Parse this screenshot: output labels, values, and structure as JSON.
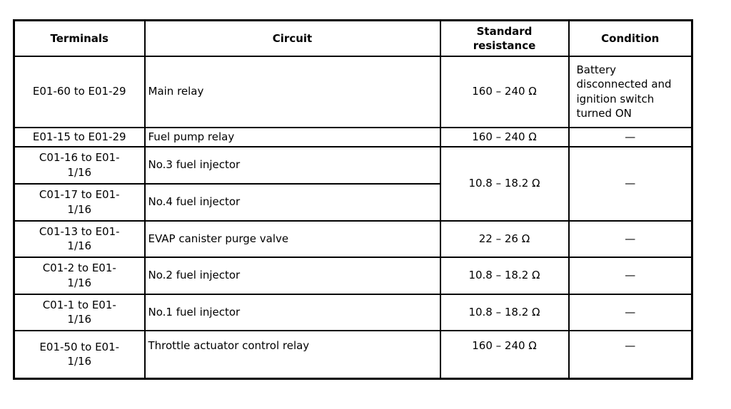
{
  "table": {
    "headers": [
      "Terminals",
      "Circuit",
      "Standard resistance",
      "Condition"
    ],
    "column_keys": [
      "terminals",
      "circuit",
      "resistance",
      "condition"
    ],
    "rows": [
      {
        "cells": [
          {
            "column": "terminals",
            "text": "E01-60 to E01-29"
          },
          {
            "column": "circuit",
            "text": "Main relay"
          },
          {
            "column": "resistance",
            "text": "160 – 240 Ω"
          },
          {
            "column": "condition",
            "text": "Battery disconnected and ignition switch turned ON",
            "align": "left"
          }
        ]
      },
      {
        "cells": [
          {
            "column": "terminals",
            "text": "E01-15 to E01-29"
          },
          {
            "column": "circuit",
            "text": "Fuel pump relay"
          },
          {
            "column": "resistance",
            "text": "160 – 240 Ω"
          },
          {
            "column": "condition",
            "text": "—"
          }
        ]
      },
      {
        "cells": [
          {
            "column": "terminals",
            "text": "C01-16 to E01-\n1/16"
          },
          {
            "column": "circuit",
            "text": "No.3 fuel injector"
          },
          {
            "column": "resistance",
            "text": "10.8 – 18.2 Ω",
            "rowspan": 2
          },
          {
            "column": "condition",
            "text": "—",
            "rowspan": 2
          }
        ]
      },
      {
        "cells": [
          {
            "column": "terminals",
            "text": "C01-17 to E01-\n1/16"
          },
          {
            "column": "circuit",
            "text": "No.4 fuel injector"
          }
        ]
      },
      {
        "cells": [
          {
            "column": "terminals",
            "text": "C01-13 to E01-\n1/16"
          },
          {
            "column": "circuit",
            "text": "EVAP canister purge valve"
          },
          {
            "column": "resistance",
            "text": "22 – 26 Ω"
          },
          {
            "column": "condition",
            "text": "—"
          }
        ]
      },
      {
        "cells": [
          {
            "column": "terminals",
            "text": "C01-2 to E01-\n1/16"
          },
          {
            "column": "circuit",
            "text": "No.2 fuel injector"
          },
          {
            "column": "resistance",
            "text": "10.8 – 18.2 Ω"
          },
          {
            "column": "condition",
            "text": "—"
          }
        ]
      },
      {
        "cells": [
          {
            "column": "terminals",
            "text": "C01-1 to E01-\n1/16"
          },
          {
            "column": "circuit",
            "text": "No.1 fuel injector"
          },
          {
            "column": "resistance",
            "text": "10.8 – 18.2 Ω"
          },
          {
            "column": "condition",
            "text": "—"
          }
        ]
      },
      {
        "cells": [
          {
            "column": "terminals",
            "text": "E01-50 to E01-\n1/16"
          },
          {
            "column": "circuit",
            "text": "Throttle actuator control relay"
          },
          {
            "column": "resistance",
            "text": "160 – 240 Ω"
          },
          {
            "column": "condition",
            "text": "—"
          }
        ]
      }
    ]
  }
}
